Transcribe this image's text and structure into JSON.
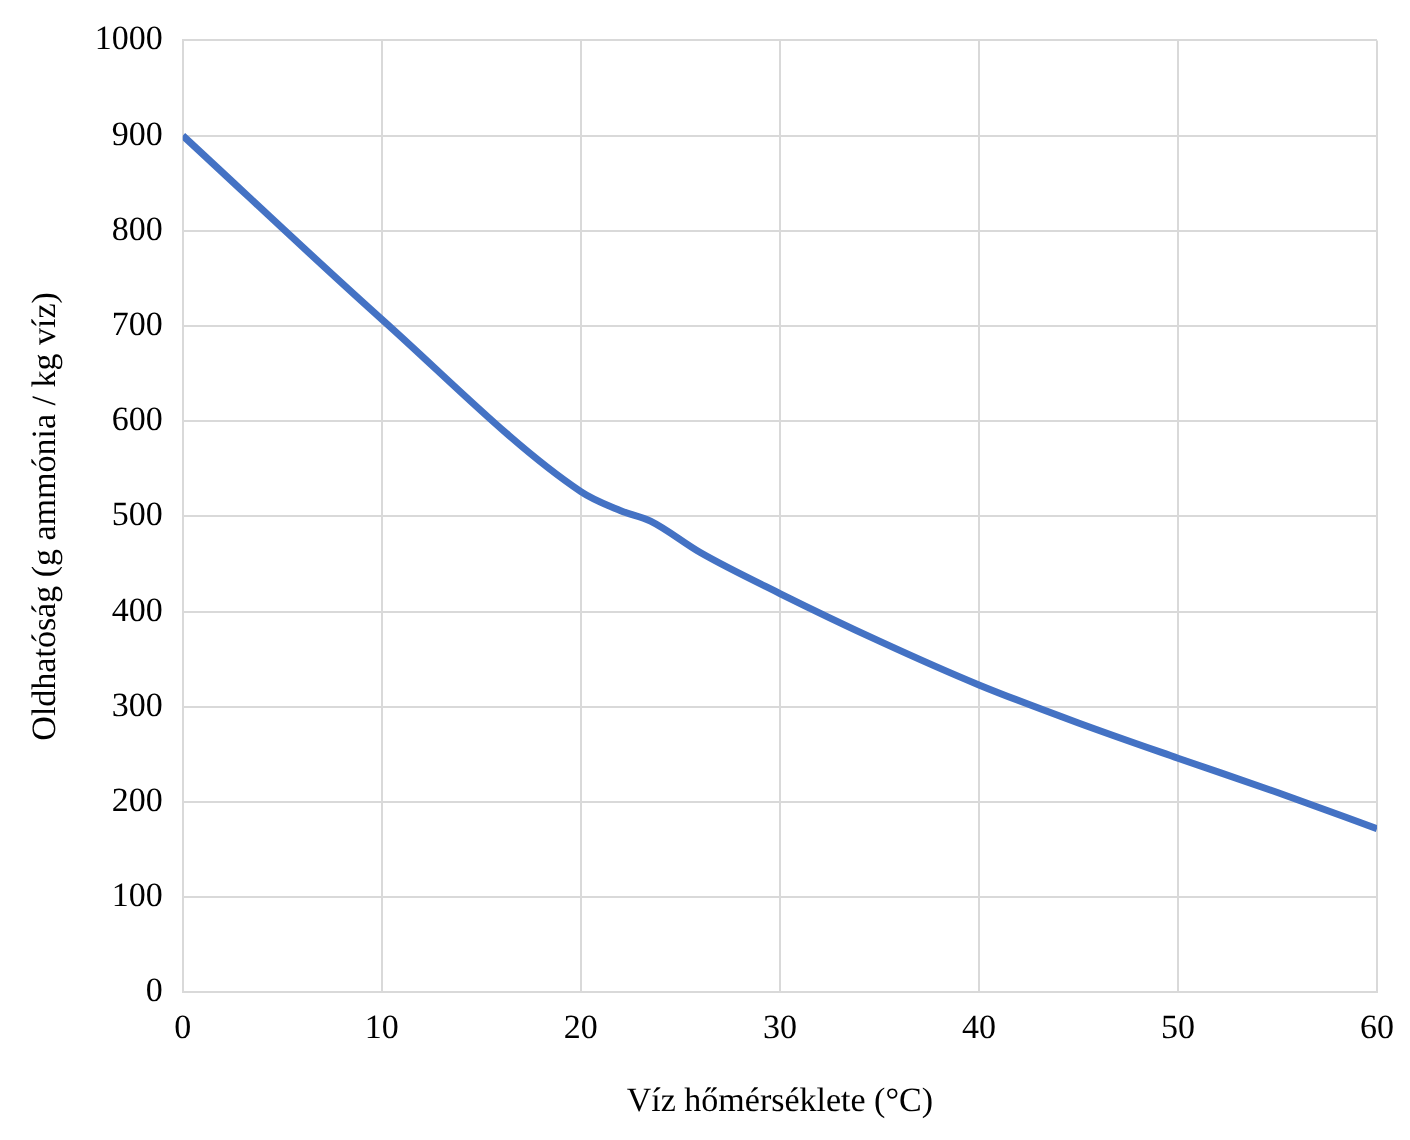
{
  "chart_data": {
    "type": "line",
    "xlabel": "Víz hőmérséklete (°C)",
    "ylabel": "Oldhatóság (g ammónia / kg víz)",
    "x": [
      0,
      10,
      20,
      22,
      23.5,
      26,
      30,
      35,
      40,
      45,
      50,
      55,
      60
    ],
    "series": [
      {
        "color": "#4472c4",
        "values": [
          900,
          707,
          526,
          506,
          495,
          462,
          419,
          369,
          323,
          283,
          246,
          210,
          172
        ]
      }
    ],
    "xlim": [
      0,
      60
    ],
    "xticks": [
      0,
      10,
      20,
      30,
      40,
      50,
      60
    ],
    "ylim": [
      0,
      1000
    ],
    "yticks": [
      0,
      100,
      200,
      300,
      400,
      500,
      600,
      700,
      800,
      900,
      1000
    ],
    "grid": true,
    "legend": false,
    "marker": "none",
    "line_style": "solid"
  }
}
